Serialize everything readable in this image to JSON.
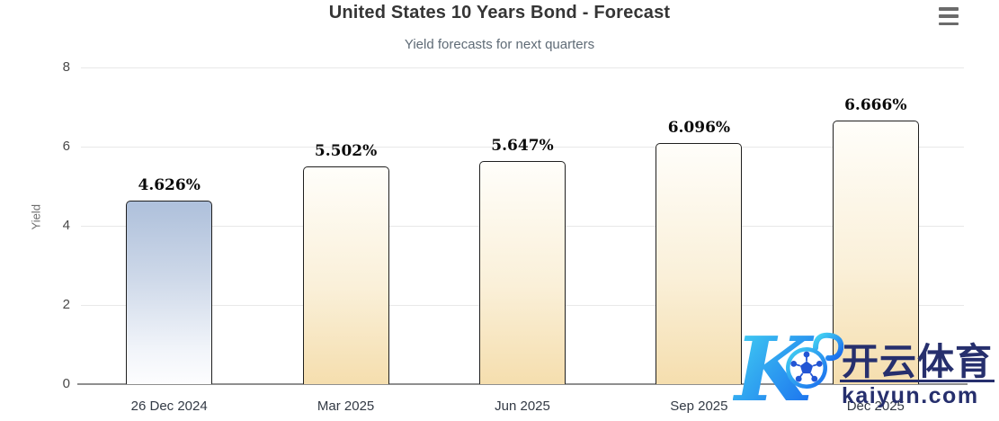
{
  "header": {
    "title": "United States 10 Years Bond - Forecast",
    "subtitle": "Yield forecasts for next quarters"
  },
  "chart_data": {
    "type": "bar",
    "title": "United States 10 Years Bond - Forecast",
    "subtitle": "Yield forecasts for next quarters",
    "categories": [
      "26 Dec 2024",
      "Mar 2025",
      "Jun 2025",
      "Sep 2025",
      "Dec 2025"
    ],
    "values": [
      4.626,
      5.502,
      5.647,
      6.096,
      6.666
    ],
    "value_labels": [
      "4.626%",
      "5.502%",
      "5.647%",
      "6.096%",
      "6.666%"
    ],
    "xlabel": "",
    "ylabel": "Yield",
    "ylim": [
      0,
      8
    ],
    "yticks": [
      0,
      2,
      4,
      6,
      8
    ],
    "grid": true,
    "legend": false,
    "bar_style": {
      "current_bar_gradient_top": "#aec0db",
      "current_bar_gradient_bottom": "#fdfdfe",
      "forecast_bar_gradient_top": "#fffefa",
      "forecast_bar_gradient_bottom": "#f5deae",
      "border_color": "#1f1f1f"
    }
  },
  "watermark": {
    "logo": "kaiyun-k-soccer-ball-logo",
    "logo_letter": "K",
    "cn_text": "开云体育",
    "domain": "kaiyun.com",
    "text_color": "#262f6d",
    "logo_blue_light": "#45d7f2",
    "logo_blue_dark": "#1766ee"
  }
}
